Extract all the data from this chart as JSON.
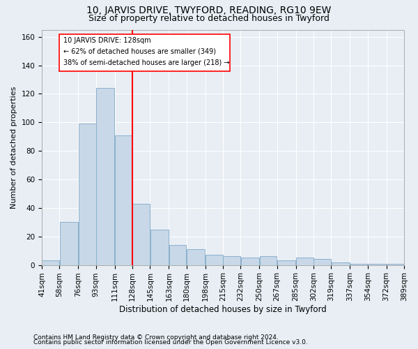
{
  "title": "10, JARVIS DRIVE, TWYFORD, READING, RG10 9EW",
  "subtitle": "Size of property relative to detached houses in Twyford",
  "xlabel": "Distribution of detached houses by size in Twyford",
  "ylabel": "Number of detached properties",
  "footnote1": "Contains HM Land Registry data © Crown copyright and database right 2024.",
  "footnote2": "Contains public sector information licensed under the Open Government Licence v3.0.",
  "annotation_line1": "10 JARVIS DRIVE: 128sqm",
  "annotation_line2": "← 62% of detached houses are smaller (349)",
  "annotation_line3": "38% of semi-detached houses are larger (218) →",
  "bar_color": "#c8d8e8",
  "bar_edge_color": "#8ab0cc",
  "red_line_x": 128,
  "categories": [
    "41sqm",
    "58sqm",
    "76sqm",
    "93sqm",
    "111sqm",
    "128sqm",
    "145sqm",
    "163sqm",
    "180sqm",
    "198sqm",
    "215sqm",
    "232sqm",
    "250sqm",
    "267sqm",
    "285sqm",
    "302sqm",
    "319sqm",
    "337sqm",
    "354sqm",
    "372sqm",
    "389sqm"
  ],
  "bar_left_edges": [
    41,
    58,
    76,
    93,
    111,
    128,
    145,
    163,
    180,
    198,
    215,
    232,
    250,
    267,
    285,
    302,
    319,
    337,
    354,
    372
  ],
  "bar_widths": [
    17,
    18,
    17,
    18,
    17,
    17,
    18,
    17,
    18,
    17,
    17,
    18,
    17,
    18,
    17,
    17,
    18,
    17,
    18,
    17
  ],
  "bar_heights": [
    3,
    30,
    99,
    124,
    91,
    43,
    25,
    14,
    11,
    7,
    6,
    5,
    6,
    3,
    5,
    4,
    2,
    1,
    1,
    1
  ],
  "ylim": [
    0,
    165
  ],
  "xlim": [
    41,
    389
  ],
  "background_color": "#e8eef4",
  "grid_color": "#ffffff",
  "title_fontsize": 10,
  "subtitle_fontsize": 9,
  "footnote_fontsize": 6.5
}
